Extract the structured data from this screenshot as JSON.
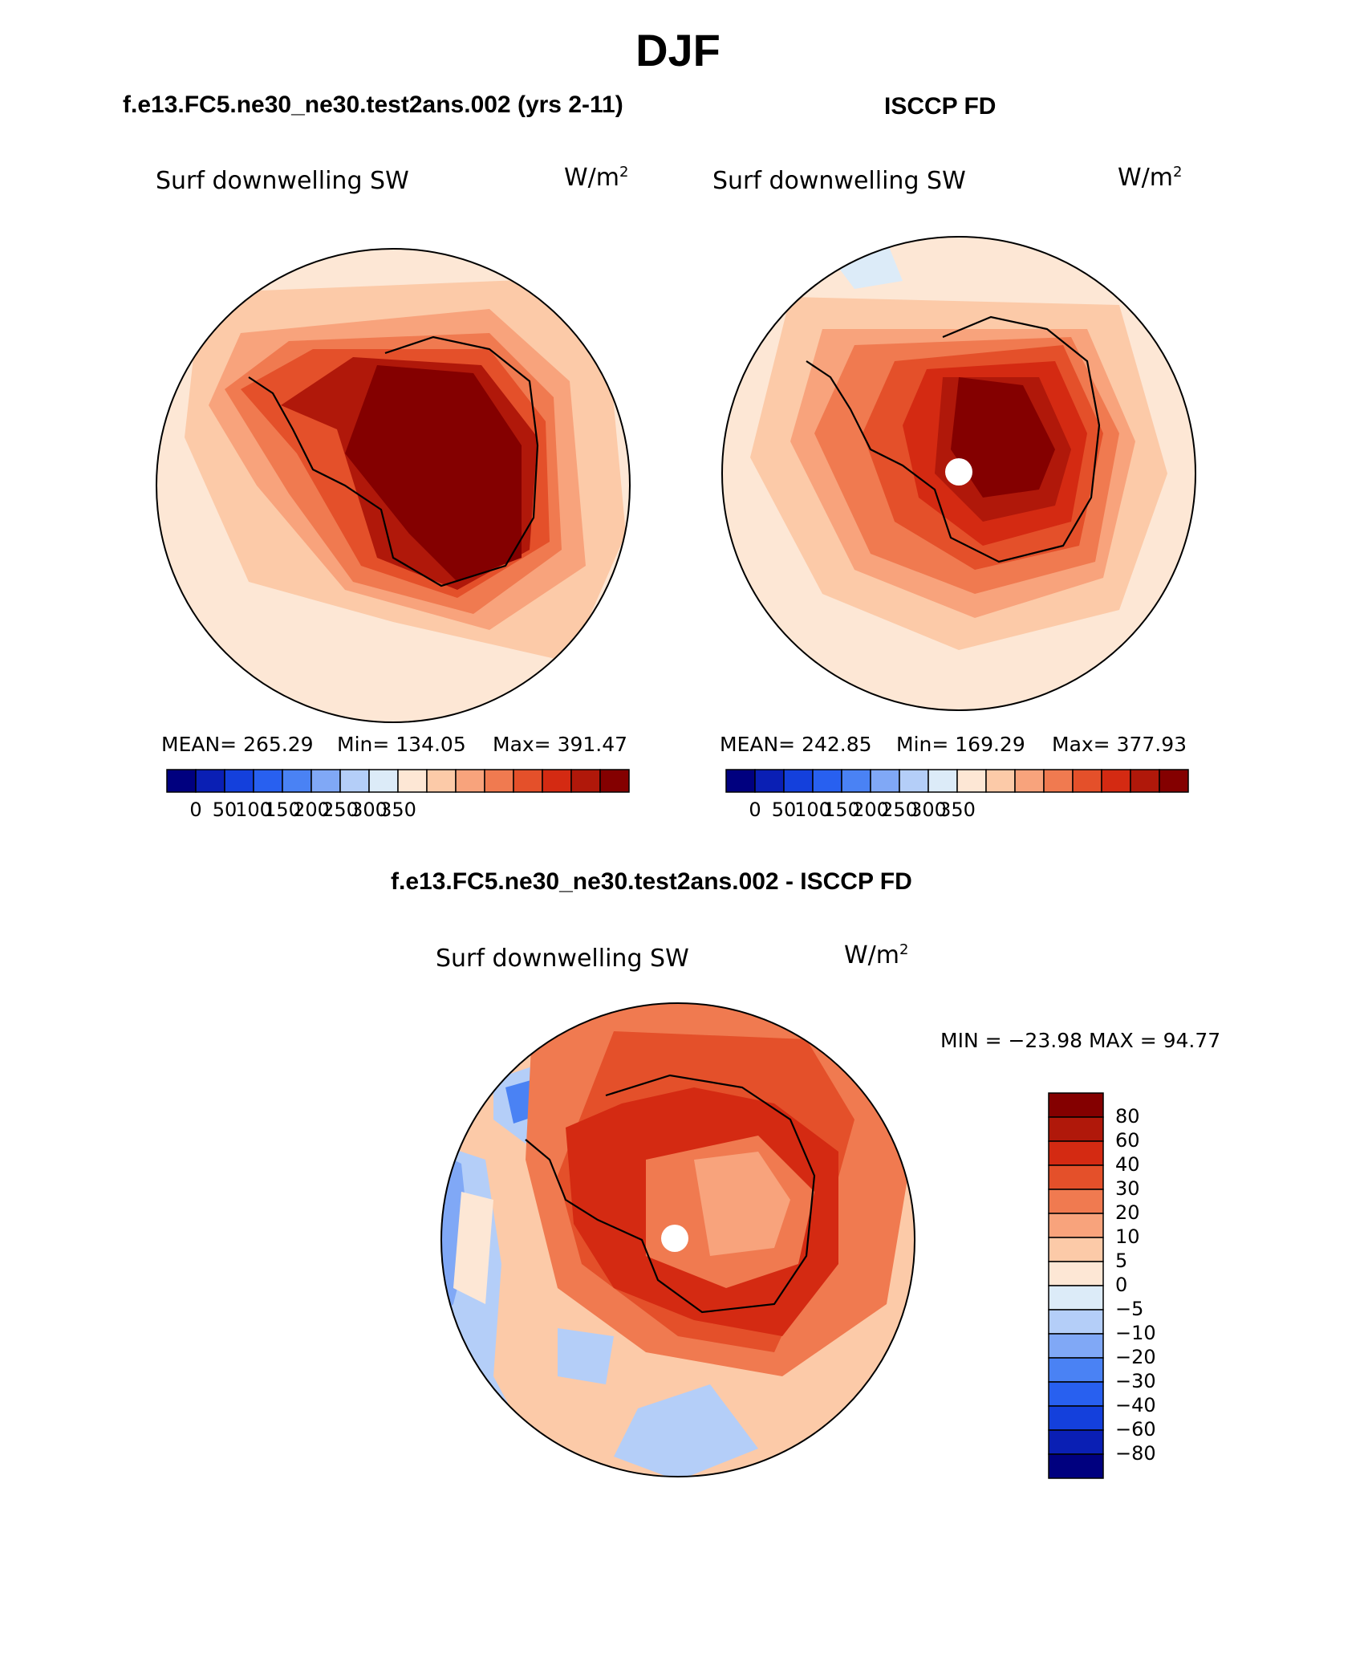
{
  "page": {
    "title": "DJF"
  },
  "panels": [
    {
      "case_title": "f.e13.FC5.ne30_ne30.test2ans.002 (yrs 2-11)",
      "variable": "Surf downwelling SW",
      "unit_base": "W/m",
      "unit_exp": "2",
      "mean_text": "MEAN= 265.29",
      "min_text": "Min= 134.05",
      "max_text": "Max= 391.47",
      "colorbar_ticks": [
        "0",
        "50",
        "100",
        "150",
        "200",
        "250",
        "300",
        "350"
      ]
    },
    {
      "case_title": "ISCCP FD",
      "variable": "Surf downwelling SW",
      "unit_base": "W/m",
      "unit_exp": "2",
      "mean_text": "MEAN= 242.85",
      "min_text": "Min= 169.29",
      "max_text": "Max= 377.93",
      "colorbar_ticks": [
        "0",
        "50",
        "100",
        "150",
        "200",
        "250",
        "300",
        "350"
      ]
    }
  ],
  "difference": {
    "case_title": "f.e13.FC5.ne30_ne30.test2ans.002 - ISCCP FD",
    "variable": "Surf downwelling SW",
    "unit_base": "W/m",
    "unit_exp": "2",
    "minmax_text": "MIN = −23.98 MAX =   94.77",
    "colorbar_ticks": [
      "80",
      "60",
      "40",
      "30",
      "20",
      "10",
      "5",
      "0",
      "−5",
      "−10",
      "−20",
      "−30",
      "−40",
      "−60",
      "−80"
    ]
  },
  "colors": {
    "abs_scale": [
      "#00007f",
      "#0a1fb4",
      "#1440dc",
      "#2860f0",
      "#4a82f4",
      "#80a8f6",
      "#b4cef8",
      "#dcebf8",
      "#fde7d5",
      "#fccaa8",
      "#f8a37c",
      "#f07a50",
      "#e4502a",
      "#d42a12",
      "#b0180a",
      "#840000"
    ],
    "diff_scale": [
      "#840000",
      "#b0180a",
      "#d42a12",
      "#e4502a",
      "#f07a50",
      "#f8a37c",
      "#fccaa8",
      "#fde7d5",
      "#dcebf8",
      "#b4cef8",
      "#80a8f6",
      "#4a82f4",
      "#2860f0",
      "#1440dc",
      "#0a1fb4",
      "#00007f"
    ]
  }
}
